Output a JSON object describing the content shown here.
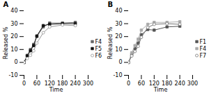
{
  "chart_data": [
    {
      "type": "line",
      "title": "A",
      "xlabel": "Time",
      "ylabel": "Released %",
      "x": [
        0,
        15,
        30,
        45,
        60,
        90,
        120,
        180,
        240
      ],
      "xlim": [
        0,
        300
      ],
      "xticks": [
        0,
        60,
        120,
        180,
        240,
        300
      ],
      "ylim": [
        -10,
        40
      ],
      "yticks": [
        -10,
        0,
        10,
        20,
        30,
        40
      ],
      "grid": false,
      "legend": "right",
      "series": [
        {
          "name": "F4",
          "color": "#666666",
          "marker": "square",
          "line_style": "solid",
          "values": [
            0,
            5.5,
            10.0,
            14.0,
            20.0,
            27.5,
            30.5,
            30.5,
            31.0
          ],
          "yerr": [
            0.1,
            0.4,
            0.5,
            0.5,
            0.6,
            0.9,
            0.8,
            0.6,
            0.7
          ]
        },
        {
          "name": "F5",
          "color": "#111111",
          "marker": "square",
          "line_style": "solid",
          "values": [
            0,
            5.0,
            9.0,
            13.0,
            20.5,
            28.5,
            29.5,
            30.0,
            30.0
          ],
          "yerr": [
            0.1,
            0.4,
            0.5,
            0.5,
            0.7,
            0.8,
            0.7,
            0.6,
            0.5
          ]
        },
        {
          "name": "F6",
          "color": "#999999",
          "marker": "open_circle",
          "line_style": "solid",
          "values": [
            0,
            3.0,
            5.5,
            9.0,
            15.0,
            23.0,
            27.5,
            29.0,
            28.5
          ],
          "yerr": [
            0.1,
            0.3,
            0.4,
            0.5,
            0.7,
            0.8,
            1.0,
            0.7,
            0.6
          ]
        }
      ]
    },
    {
      "type": "line",
      "title": "B",
      "xlabel": "Time",
      "ylabel": "Released %",
      "x": [
        0,
        15,
        30,
        45,
        60,
        90,
        120,
        180,
        240
      ],
      "xlim": [
        0,
        300
      ],
      "xticks": [
        0,
        60,
        120,
        180,
        240,
        300
      ],
      "ylim": [
        -10,
        40
      ],
      "yticks": [
        -10,
        0,
        10,
        20,
        30,
        40
      ],
      "grid": false,
      "legend": "right",
      "series": [
        {
          "name": "F1",
          "color": "#555555",
          "marker": "square",
          "line_style": "solid",
          "values": [
            0,
            6.0,
            10.5,
            15.0,
            21.5,
            25.5,
            25.0,
            27.5,
            28.0
          ],
          "yerr": [
            0.1,
            0.5,
            0.5,
            0.6,
            0.7,
            0.8,
            0.6,
            0.6,
            0.6
          ]
        },
        {
          "name": "F4",
          "color": "#aaaaaa",
          "marker": "square",
          "line_style": "solid",
          "values": [
            0,
            7.5,
            13.0,
            18.0,
            25.0,
            29.5,
            31.0,
            31.0,
            31.5
          ],
          "yerr": [
            0.1,
            0.5,
            0.5,
            0.6,
            0.8,
            0.9,
            0.8,
            0.7,
            0.7
          ]
        },
        {
          "name": "F7",
          "color": "#777777",
          "marker": "open_circle",
          "line_style": "solid",
          "values": [
            0,
            5.0,
            8.5,
            12.5,
            19.5,
            27.0,
            29.5,
            30.0,
            29.5
          ],
          "yerr": [
            0.1,
            0.4,
            0.5,
            0.6,
            0.7,
            0.8,
            0.7,
            0.7,
            0.6
          ]
        }
      ]
    }
  ]
}
